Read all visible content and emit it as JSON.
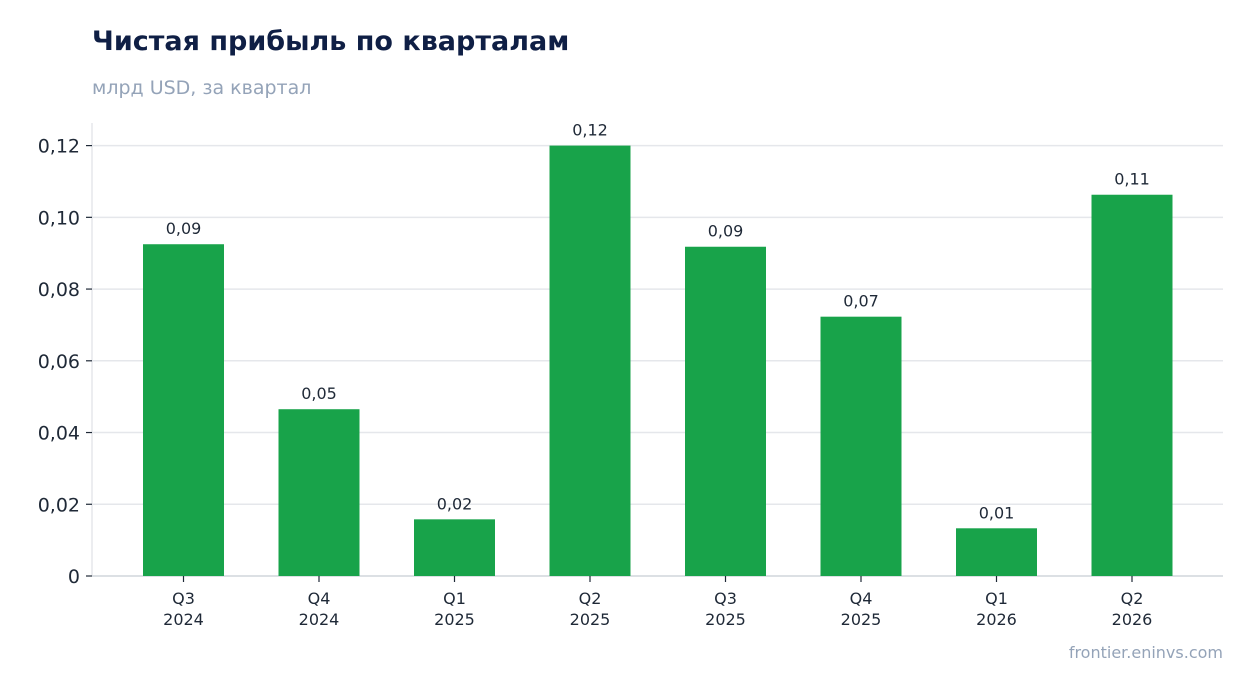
{
  "chart_data": {
    "type": "bar",
    "title": "Чистая прибыль по кварталам",
    "subtitle": "млрд USD, за квартал",
    "categories": [
      [
        "Q3",
        "2024"
      ],
      [
        "Q4",
        "2024"
      ],
      [
        "Q1",
        "2025"
      ],
      [
        "Q2",
        "2025"
      ],
      [
        "Q3",
        "2025"
      ],
      [
        "Q4",
        "2025"
      ],
      [
        "Q1",
        "2026"
      ],
      [
        "Q2",
        "2026"
      ]
    ],
    "values": [
      0.0925,
      0.0465,
      0.0158,
      0.12,
      0.0918,
      0.0723,
      0.0133,
      0.1063
    ],
    "data_labels": [
      "0,09",
      "0,05",
      "0,02",
      "0,12",
      "0,09",
      "0,07",
      "0,01",
      "0,11"
    ],
    "yticks": [
      0,
      0.02,
      0.04,
      0.06,
      0.08,
      0.1,
      0.12
    ],
    "ytick_labels": [
      "0",
      "0,02",
      "0,04",
      "0,06",
      "0,08",
      "0,10",
      "0,12"
    ],
    "ylim": [
      0,
      0.1263
    ],
    "grid": true,
    "bar_color": "#18a34a",
    "grid_color": "#e5e7eb"
  },
  "source": "frontier.eninvs.com"
}
